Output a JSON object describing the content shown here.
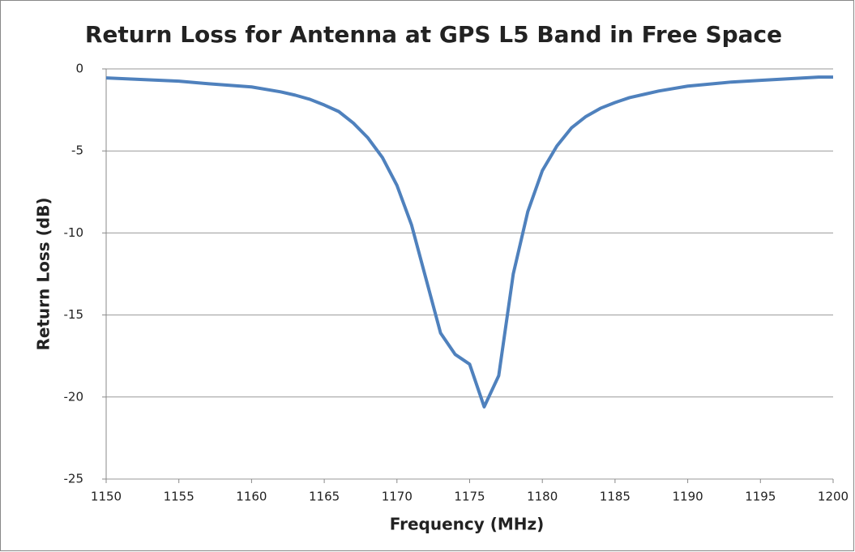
{
  "chart_data": {
    "type": "line",
    "title": "Return Loss for Antenna at GPS L5 Band in Free Space",
    "x_label": "Frequency  (MHz)",
    "y_label": "Return Loss (dB)",
    "x": [
      1150,
      1155,
      1157,
      1160,
      1162,
      1163,
      1164,
      1165,
      1166,
      1167,
      1168,
      1169,
      1170,
      1171,
      1172,
      1173,
      1174,
      1175,
      1176,
      1177,
      1178,
      1179,
      1180,
      1181,
      1182,
      1183,
      1184,
      1185,
      1186,
      1187,
      1188,
      1190,
      1193,
      1195,
      1199,
      1200
    ],
    "series": [
      {
        "name": "Return Loss",
        "color": "#4f81bd",
        "values": [
          -0.55,
          -0.75,
          -0.9,
          -1.1,
          -1.4,
          -1.6,
          -1.85,
          -2.2,
          -2.6,
          -3.3,
          -4.2,
          -5.4,
          -7.1,
          -9.5,
          -12.8,
          -16.1,
          -17.4,
          -18.0,
          -20.6,
          -18.7,
          -12.5,
          -8.7,
          -6.2,
          -4.7,
          -3.6,
          -2.9,
          -2.4,
          -2.05,
          -1.75,
          -1.55,
          -1.35,
          -1.05,
          -0.8,
          -0.7,
          -0.5,
          -0.5
        ]
      }
    ],
    "xlim": [
      1150,
      1200
    ],
    "xticks": [
      1150,
      1155,
      1160,
      1165,
      1170,
      1175,
      1180,
      1185,
      1190,
      1195,
      1200
    ],
    "ylim": [
      -25,
      0
    ],
    "yticks": [
      -25,
      -20,
      -15,
      -10,
      -5,
      0
    ],
    "grid": true
  }
}
